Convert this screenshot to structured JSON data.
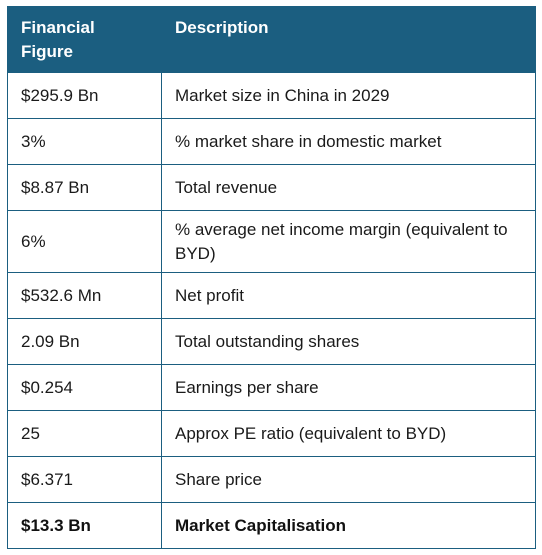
{
  "table": {
    "headers": [
      "Financial Figure",
      "Description"
    ],
    "rows": [
      {
        "figure": "$295.9 Bn",
        "description": "Market size in China in 2029",
        "bold": false
      },
      {
        "figure": "3%",
        "description": "% market share in domestic market",
        "bold": false
      },
      {
        "figure": "$8.87 Bn",
        "description": "Total revenue",
        "bold": false
      },
      {
        "figure": "6%",
        "description": "% average net income margin (equivalent to BYD)",
        "bold": false
      },
      {
        "figure": "$532.6 Mn",
        "description": "Net profit",
        "bold": false
      },
      {
        "figure": "2.09 Bn",
        "description": "Total outstanding shares",
        "bold": false
      },
      {
        "figure": "$0.254",
        "description": "Earnings per share",
        "bold": false
      },
      {
        "figure": "25",
        "description": "Approx PE ratio (equivalent to BYD)",
        "bold": false
      },
      {
        "figure": "$6.371",
        "description": "Share price",
        "bold": false
      },
      {
        "figure": "$13.3 Bn",
        "description": "Market Capitalisation",
        "bold": true
      }
    ]
  },
  "colors": {
    "header_bg": "#1b5e80",
    "header_text": "#ffffff",
    "border": "#1b5e80"
  }
}
